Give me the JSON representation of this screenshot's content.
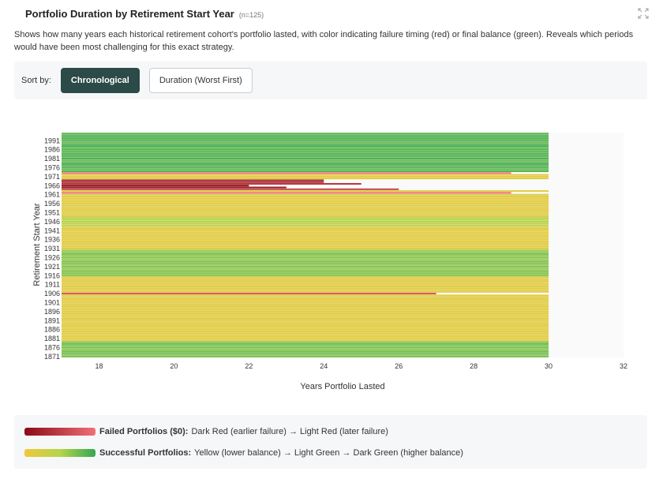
{
  "header": {
    "title": "Portfolio Duration by Retirement Start Year",
    "count_label": "(n=125)",
    "description": "Shows how many years each historical retirement cohort's portfolio lasted, with color indicating failure timing (red) or final balance (green). Reveals which periods would have been most challenging for this exact strategy."
  },
  "sort": {
    "label": "Sort by:",
    "options": [
      "Chronological",
      "Duration (Worst First)"
    ],
    "selected": "Chronological"
  },
  "legend": {
    "failed_title": "Failed Portfolios ($0):",
    "failed_desc": "Dark Red (earlier failure) → Light Red (later failure)",
    "success_title": "Successful Portfolios:",
    "success_desc": "Yellow (lower balance) → Light Green → Dark Green (higher balance)"
  },
  "colors": {
    "fail_dark": "#8b0a14",
    "fail_light": "#f07078",
    "success_low": "#f0c83c",
    "success_mid": "#b5d44a",
    "success_high": "#34a853",
    "button_active": "#2b4a48"
  },
  "chart_data": {
    "type": "bar",
    "orientation": "horizontal",
    "xlabel": "Years Portfolio Lasted",
    "ylabel": "Retirement Start Year",
    "xlim": [
      17,
      32
    ],
    "xticks": [
      18,
      20,
      22,
      24,
      26,
      28,
      30,
      32
    ],
    "year_range": [
      1871,
      1995
    ],
    "yticks": [
      1991,
      1986,
      1981,
      1976,
      1971,
      1966,
      1961,
      1956,
      1951,
      1946,
      1941,
      1936,
      1931,
      1926,
      1921,
      1916,
      1911,
      1906,
      1901,
      1896,
      1891,
      1886,
      1881,
      1876,
      1871
    ],
    "default_duration": 30,
    "failed": [
      {
        "year": 1973,
        "years": 29
      },
      {
        "year": 1969,
        "years": 24
      },
      {
        "year": 1968,
        "years": 24
      },
      {
        "year": 1967,
        "years": 25
      },
      {
        "year": 1966,
        "years": 22
      },
      {
        "year": 1965,
        "years": 23
      },
      {
        "year": 1964,
        "years": 26
      },
      {
        "year": 1962,
        "years": 29
      },
      {
        "year": 1906,
        "years": 27
      }
    ],
    "green_ranges": [
      [
        1871,
        1879,
        0.7
      ],
      [
        1916,
        1930,
        0.65
      ],
      [
        1944,
        1948,
        0.45
      ],
      [
        1974,
        1995,
        0.85
      ]
    ],
    "grid": false
  }
}
